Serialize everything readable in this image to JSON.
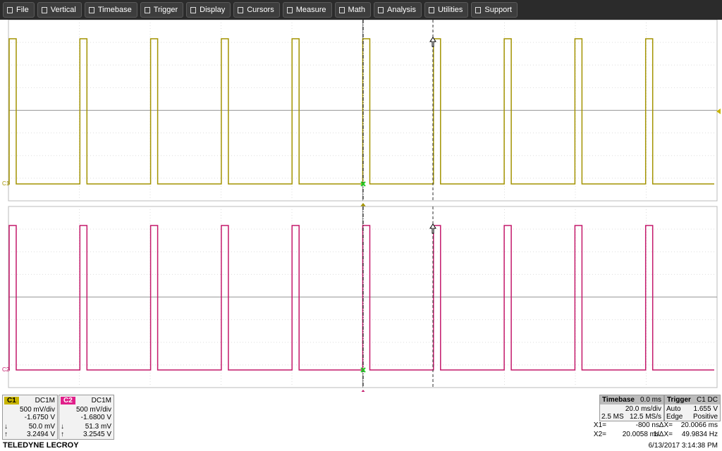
{
  "menu": [
    "File",
    "Vertical",
    "Timebase",
    "Trigger",
    "Display",
    "Cursors",
    "Measure",
    "Math",
    "Analysis",
    "Utilities",
    "Support"
  ],
  "traces": {
    "c1_label": "C1",
    "c2_label": "C2"
  },
  "channels": [
    {
      "name": "C1",
      "coupling": "DC1M",
      "scale": "500 mV/div",
      "offset": "-1.6750 V",
      "min_arrow": "↓",
      "min": "50.0 mV",
      "max_arrow": "↑",
      "max": "3.2494 V"
    },
    {
      "name": "C2",
      "coupling": "DC1M",
      "scale": "500 mV/div",
      "offset": "-1.6800 V",
      "min_arrow": "↓",
      "min": "51.3 mV",
      "max_arrow": "↑",
      "max": "3.2545 V"
    }
  ],
  "timebase": {
    "title": "Timebase",
    "delay": "0.0 ms",
    "scale": "20.0 ms/div",
    "points": "2.5 MS",
    "rate": "12.5 MS/s"
  },
  "trigger": {
    "title": "Trigger",
    "source": "C1 DC",
    "mode": "Auto",
    "level": "1.655 V",
    "type": "Edge",
    "slope": "Positive"
  },
  "cursors": {
    "x1_label": "X1=",
    "x1": "-800 ns",
    "dx_label": "ΔX=",
    "dx": "20.0066 ms",
    "x2_label": "X2=",
    "x2": "20.0058 ms",
    "inv_label": "1/ΔX=",
    "inv": "49.9834 Hz"
  },
  "footer": {
    "brand": "TELEDYNE LECROY",
    "timestamp": "6/13/2017 3:14:38 PM"
  }
}
